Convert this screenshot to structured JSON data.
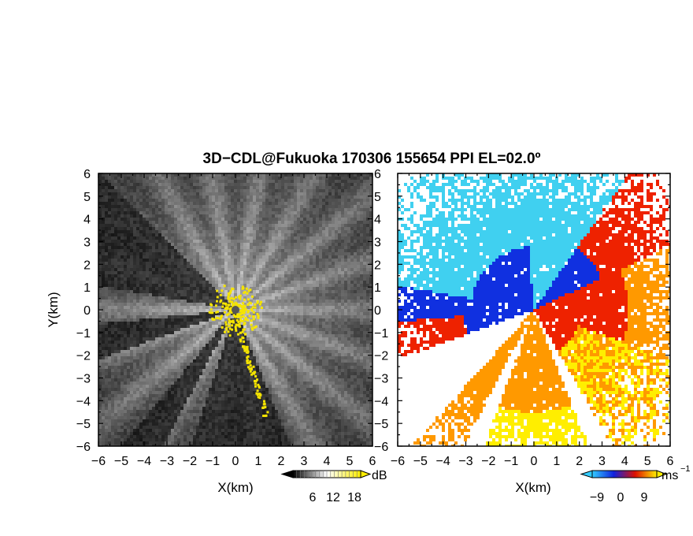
{
  "chart_data": {
    "type": "heatmap",
    "title": "3D−CDL@Fukuoka 170306 155654 PPI EL=02.0º",
    "panels": [
      {
        "name": "reflectivity",
        "xlabel": "X(km)",
        "ylabel": "Y(km)",
        "xlim": [
          -6,
          6
        ],
        "ylim": [
          -6,
          6
        ],
        "xticks": [
          "−6",
          "−5",
          "−4",
          "−3",
          "−2",
          "−1",
          "0",
          "1",
          "2",
          "3",
          "4",
          "5",
          "6"
        ],
        "yticks": [
          "6",
          "5",
          "4",
          "3",
          "2",
          "1",
          "0",
          "−1",
          "−2",
          "−3",
          "−4",
          "−5",
          "−6"
        ],
        "colorbar": {
          "unit": "dB",
          "ticks": [
            "6",
            "12",
            "18"
          ],
          "colors": [
            "#000000",
            "#ffffff",
            "#ffee00"
          ]
        }
      },
      {
        "name": "radial-velocity",
        "xlabel": "X(km)",
        "ylabel": "",
        "xlim": [
          -6,
          6
        ],
        "ylim": [
          -6,
          6
        ],
        "xticks": [
          "−6",
          "−5",
          "−4",
          "−3",
          "−2",
          "−1",
          "0",
          "1",
          "2",
          "3",
          "4",
          "5",
          "6"
        ],
        "yticks": [
          "6",
          "5",
          "4",
          "3",
          "2",
          "1",
          "0",
          "−1",
          "−2",
          "−3",
          "−4",
          "−5",
          "−6"
        ],
        "colorbar": {
          "unit": "ms",
          "unit_sup": "−1",
          "ticks": [
            "−9",
            "0",
            "9"
          ],
          "colors": [
            "#33ccff",
            "#1122dd",
            "#dd1100",
            "#ffee00"
          ]
        }
      }
    ]
  },
  "colors": {
    "approaching_light": "#40d0f0",
    "approaching_dark": "#1030e0",
    "receding_red": "#ee2200",
    "receding_orange": "#ff9900",
    "receding_yellow": "#ffee00"
  }
}
